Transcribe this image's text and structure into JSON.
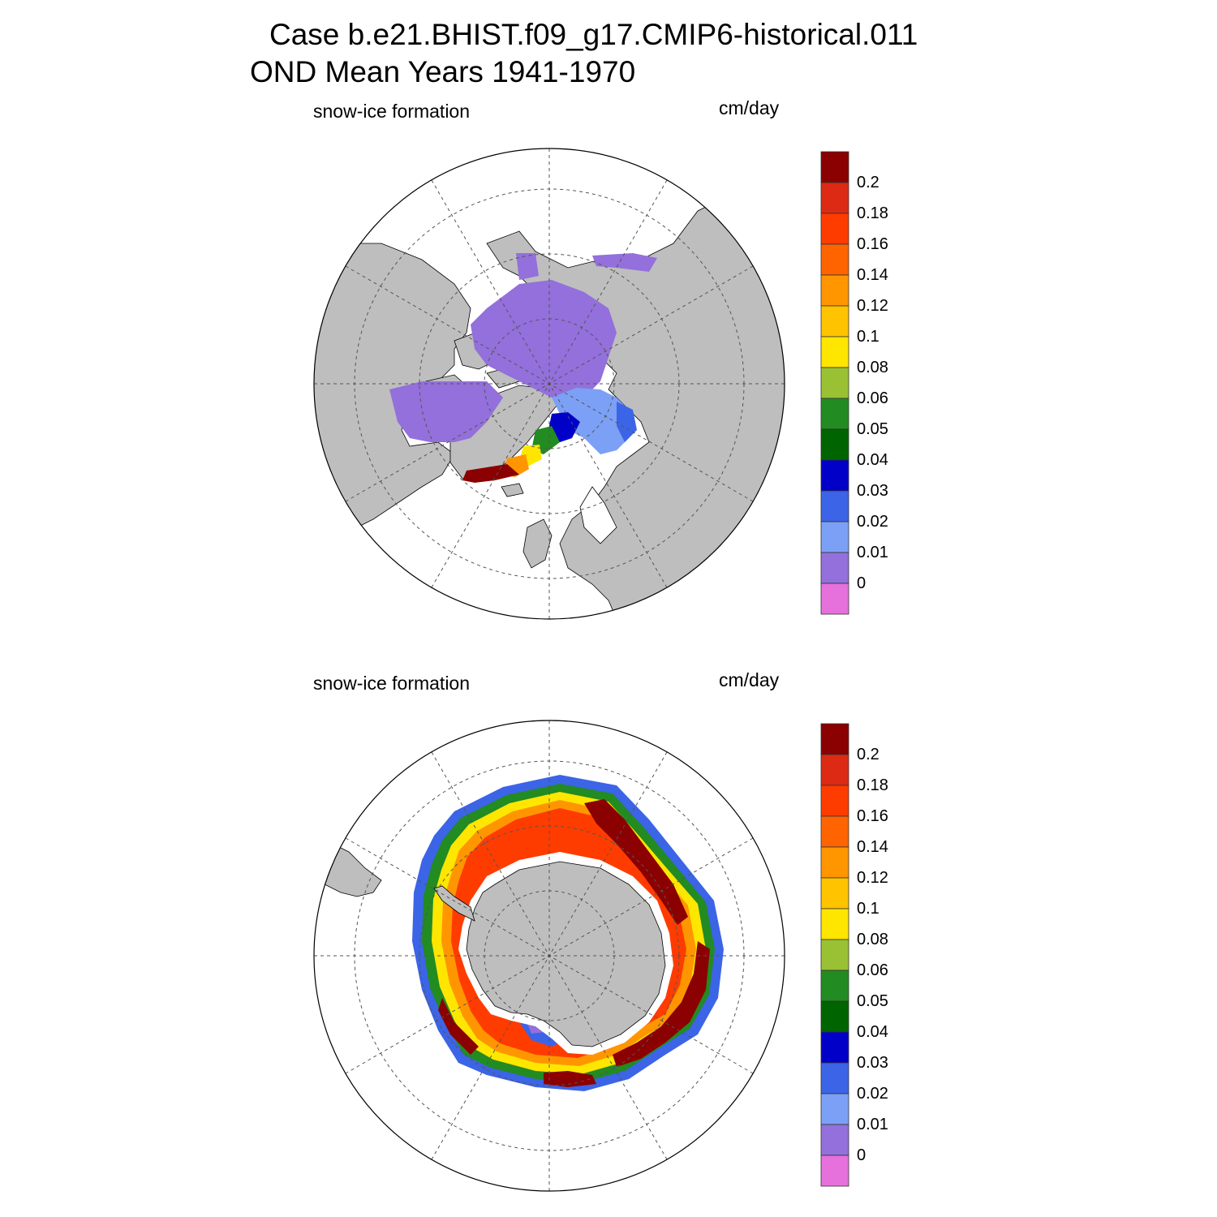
{
  "title": {
    "line1": "Case b.e21.BHIST.f09_g17.CMIP6-historical.011",
    "line2": "OND Mean   Years 1941-1970"
  },
  "panels": [
    {
      "id": "nh",
      "hemisphere": "north",
      "variable_label": "snow-ice formation",
      "units_label": "cm/day"
    },
    {
      "id": "sh",
      "hemisphere": "south",
      "variable_label": "snow-ice formation",
      "units_label": "cm/day"
    }
  ],
  "colorbar": {
    "labels": [
      "0.2",
      "0.18",
      "0.16",
      "0.14",
      "0.12",
      "0.1",
      "0.08",
      "0.06",
      "0.05",
      "0.04",
      "0.03",
      "0.02",
      "0.01",
      "0"
    ],
    "colors": [
      "#8b0000",
      "#dc2a14",
      "#ff3c00",
      "#ff6400",
      "#ff9600",
      "#ffc300",
      "#ffe600",
      "#9ac133",
      "#228b22",
      "#006400",
      "#0000c8",
      "#3c64e6",
      "#7ba0f5",
      "#9370db",
      "#e670dc"
    ]
  },
  "style": {
    "land": "#bebebe",
    "ocean": "#ffffff",
    "grid": "#555555"
  }
}
